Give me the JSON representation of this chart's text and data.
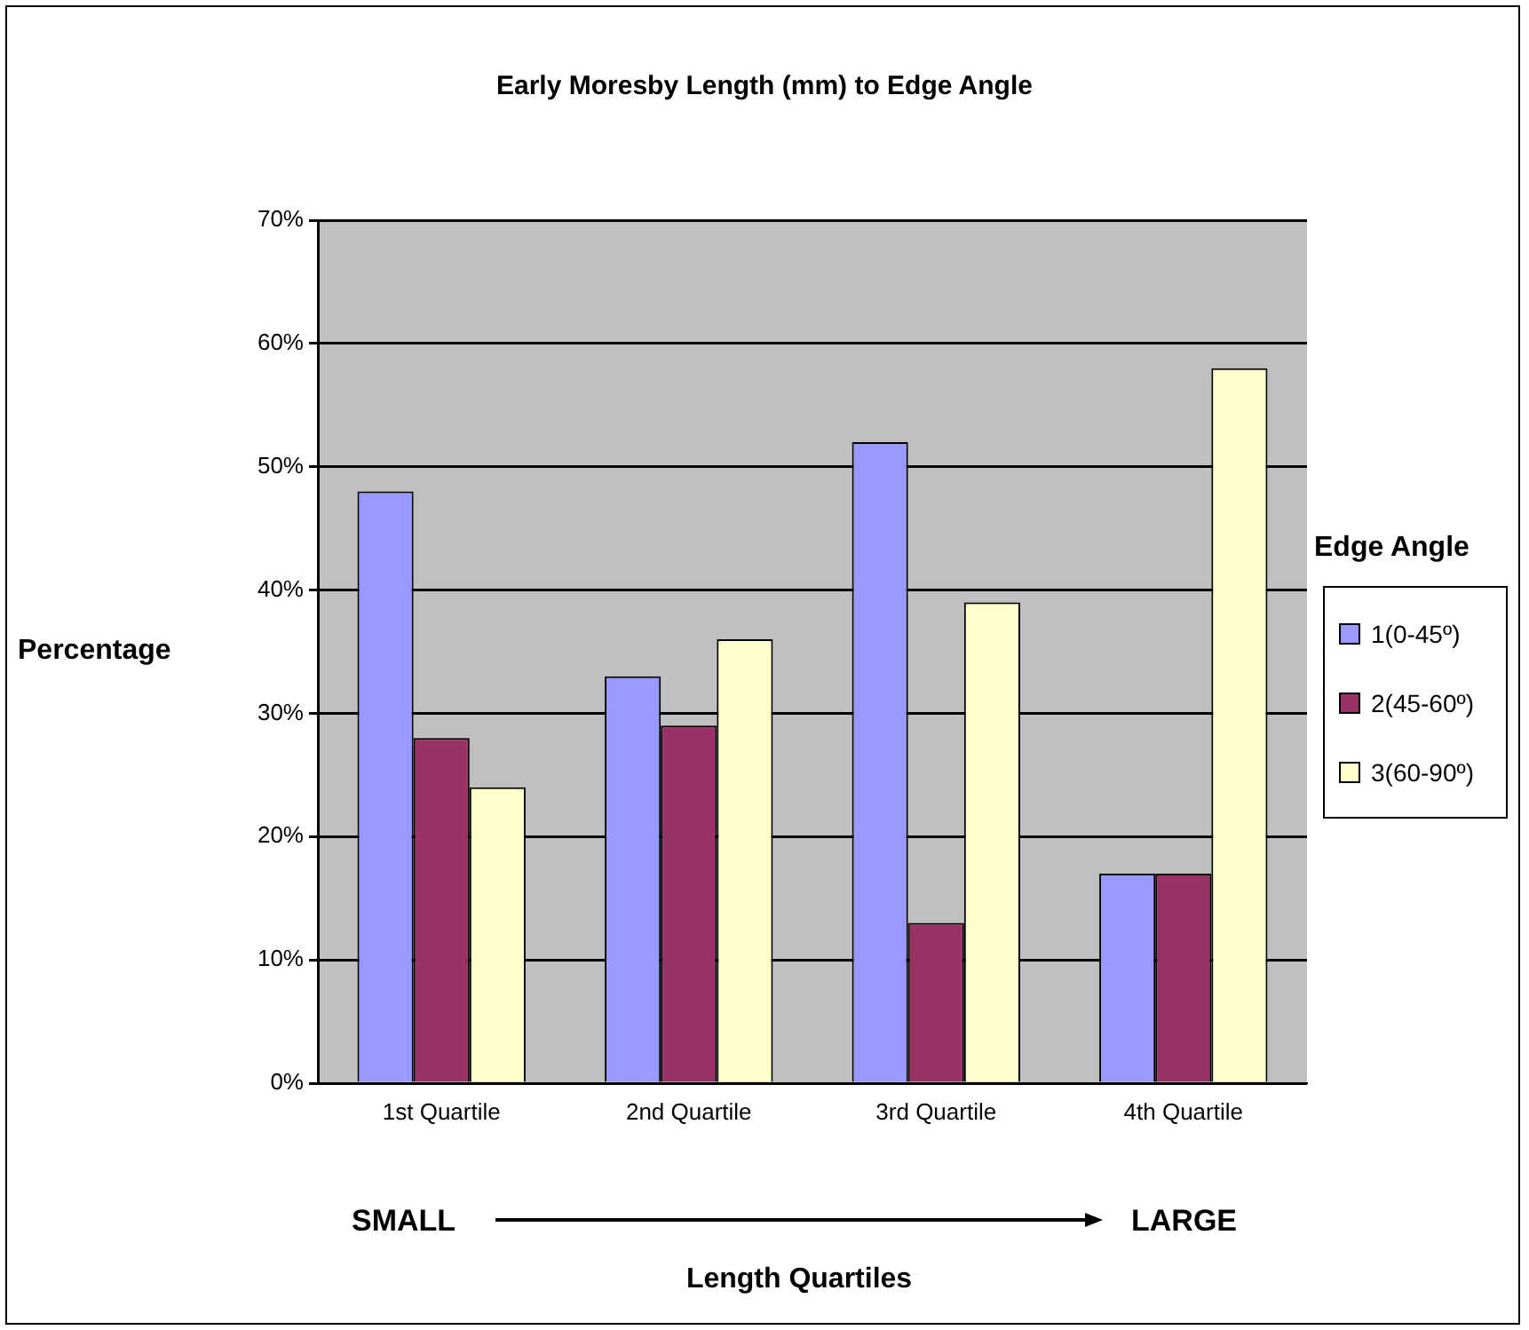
{
  "chart_data": {
    "type": "bar",
    "title": "Early Moresby Length (mm) to Edge Angle",
    "xlabel": "Length Quartiles",
    "ylabel": "Percentage",
    "legend_title": "Edge Angle",
    "categories": [
      "1st Quartile",
      "2nd Quartile",
      "3rd Quartile",
      "4th Quartile"
    ],
    "series": [
      {
        "name": "1(0-45º)",
        "color": "#9999ff",
        "values": [
          48,
          33,
          52,
          17
        ]
      },
      {
        "name": "2(45-60º)",
        "color": "#993366",
        "values": [
          28,
          29,
          13,
          17
        ]
      },
      {
        "name": "3(60-90º)",
        "color": "#ffffcc",
        "values": [
          24,
          36,
          39,
          58
        ]
      }
    ],
    "ylim": [
      0,
      70
    ],
    "yticks": [
      {
        "value": 0,
        "label": "0%"
      },
      {
        "value": 10,
        "label": "10%"
      },
      {
        "value": 20,
        "label": "20%"
      },
      {
        "value": 30,
        "label": "30%"
      },
      {
        "value": 40,
        "label": "40%"
      },
      {
        "value": 50,
        "label": "50%"
      },
      {
        "value": 60,
        "label": "60%"
      },
      {
        "value": 70,
        "label": "70%"
      }
    ],
    "grid": "y",
    "legend": "right",
    "annotations": [
      "SMALL",
      "LARGE"
    ]
  }
}
